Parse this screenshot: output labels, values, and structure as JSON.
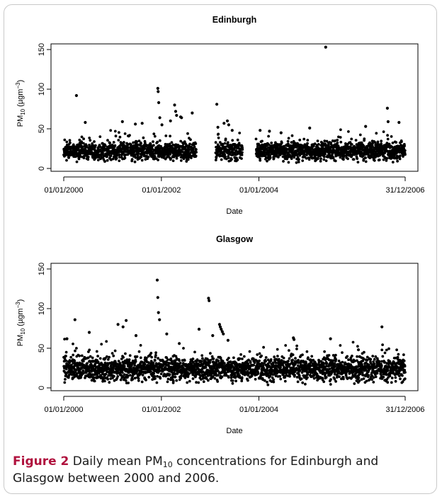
{
  "caption": {
    "label": "Figure 2",
    "text_before": " Daily mean PM",
    "subscript": "10",
    "text_after": " concentrations for Edinburgh and Glasgow between 2000 and 2006."
  },
  "chart_data": [
    {
      "type": "scatter",
      "title": "Edinburgh",
      "xlabel": "Date",
      "ylabel": "PM10 (µgm-3)",
      "ylabel_parts": {
        "base": "PM",
        "sub": "10",
        "unit_open": " (µgm",
        "sup": "−3",
        "unit_close": ")"
      },
      "xlim": [
        "01/01/2000",
        "31/12/2006"
      ],
      "ylim": [
        0,
        150
      ],
      "x_ticks": [
        "01/01/2000",
        "01/01/2002",
        "01/01/2004",
        "31/12/2006"
      ],
      "y_ticks": [
        0,
        50,
        100,
        150
      ],
      "marker_color": "#000000",
      "missing_periods": [
        [
          "2002-09-20",
          "2003-02-10"
        ],
        [
          "2003-09-01",
          "2003-12-10"
        ]
      ],
      "baseline": {
        "mean": 22,
        "spread": 7
      },
      "notable_points": [
        {
          "x": "2000-04-05",
          "y": 92
        },
        {
          "x": "2000-06-10",
          "y": 58
        },
        {
          "x": "2001-03-15",
          "y": 59
        },
        {
          "x": "2001-06-20",
          "y": 56
        },
        {
          "x": "2001-08-10",
          "y": 57
        },
        {
          "x": "2001-12-05",
          "y": 101
        },
        {
          "x": "2001-12-08",
          "y": 97
        },
        {
          "x": "2001-12-12",
          "y": 83
        },
        {
          "x": "2001-12-20",
          "y": 64
        },
        {
          "x": "2002-01-05",
          "y": 55
        },
        {
          "x": "2002-03-10",
          "y": 60
        },
        {
          "x": "2002-04-10",
          "y": 80
        },
        {
          "x": "2002-04-18",
          "y": 72
        },
        {
          "x": "2002-04-25",
          "y": 67
        },
        {
          "x": "2002-05-25",
          "y": 65
        },
        {
          "x": "2002-06-01",
          "y": 64
        },
        {
          "x": "2002-08-20",
          "y": 70
        },
        {
          "x": "2003-02-20",
          "y": 81
        },
        {
          "x": "2003-02-28",
          "y": 52
        },
        {
          "x": "2003-04-15",
          "y": 57
        },
        {
          "x": "2003-05-10",
          "y": 60
        },
        {
          "x": "2003-05-20",
          "y": 55
        },
        {
          "x": "2003-06-15",
          "y": 48
        },
        {
          "x": "2004-01-10",
          "y": 48
        },
        {
          "x": "2004-03-20",
          "y": 47
        },
        {
          "x": "2004-06-15",
          "y": 45
        },
        {
          "x": "2005-01-15",
          "y": 51
        },
        {
          "x": "2005-05-15",
          "y": 153
        },
        {
          "x": "2006-03-10",
          "y": 53
        },
        {
          "x": "2006-08-20",
          "y": 76
        },
        {
          "x": "2006-08-25",
          "y": 59
        },
        {
          "x": "2006-11-15",
          "y": 58
        }
      ]
    },
    {
      "type": "scatter",
      "title": "Glasgow",
      "xlabel": "Date",
      "ylabel": "PM10 (µgm-3)",
      "ylabel_parts": {
        "base": "PM",
        "sub": "10",
        "unit_open": " (µgm",
        "sup": "−3",
        "unit_close": ")"
      },
      "xlim": [
        "01/01/2000",
        "31/12/2006"
      ],
      "ylim": [
        0,
        150
      ],
      "x_ticks": [
        "01/01/2000",
        "01/01/2002",
        "01/01/2004",
        "31/12/2006"
      ],
      "y_ticks": [
        0,
        50,
        100,
        150
      ],
      "marker_color": "#000000",
      "missing_periods": [],
      "baseline": {
        "mean": 24,
        "spread": 9
      },
      "notable_points": [
        {
          "x": "2000-01-25",
          "y": 62
        },
        {
          "x": "2000-03-25",
          "y": 86
        },
        {
          "x": "2000-07-10",
          "y": 70
        },
        {
          "x": "2001-02-10",
          "y": 80
        },
        {
          "x": "2001-03-20",
          "y": 77
        },
        {
          "x": "2001-04-12",
          "y": 85
        },
        {
          "x": "2001-06-25",
          "y": 66
        },
        {
          "x": "2001-12-01",
          "y": 136
        },
        {
          "x": "2001-12-05",
          "y": 114
        },
        {
          "x": "2001-12-10",
          "y": 95
        },
        {
          "x": "2001-12-18",
          "y": 86
        },
        {
          "x": "2002-02-10",
          "y": 68
        },
        {
          "x": "2002-05-15",
          "y": 56
        },
        {
          "x": "2002-10-10",
          "y": 74
        },
        {
          "x": "2002-12-20",
          "y": 113
        },
        {
          "x": "2002-12-24",
          "y": 110
        },
        {
          "x": "2003-01-20",
          "y": 66
        },
        {
          "x": "2003-03-12",
          "y": 80
        },
        {
          "x": "2003-03-18",
          "y": 77
        },
        {
          "x": "2003-03-25",
          "y": 74
        },
        {
          "x": "2003-04-02",
          "y": 71
        },
        {
          "x": "2003-04-10",
          "y": 68
        },
        {
          "x": "2003-05-15",
          "y": 60
        },
        {
          "x": "2004-09-15",
          "y": 63
        },
        {
          "x": "2004-09-20",
          "y": 61
        },
        {
          "x": "2005-06-20",
          "y": 62
        },
        {
          "x": "2006-01-15",
          "y": 48
        },
        {
          "x": "2006-07-10",
          "y": 77
        }
      ]
    }
  ]
}
